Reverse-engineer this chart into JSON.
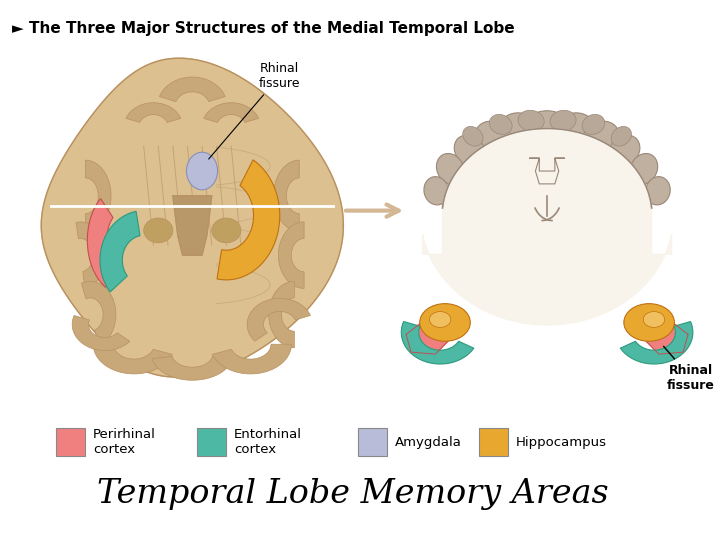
{
  "background_color": "#ffffff",
  "title": "Temporal Lobe Memory Areas",
  "title_fontsize": 24,
  "title_family": "serif",
  "header_text": "► The Three Major Structures of the Medial Temporal Lobe",
  "header_fontsize": 11,
  "legend_items": [
    {
      "label": "Perirhinal\ncortex",
      "color": "#f08080"
    },
    {
      "label": "Entorhinal\ncortex",
      "color": "#4db8a4"
    },
    {
      "label": "Amygdala",
      "color": "#b8bcd8"
    },
    {
      "label": "Hippocampus",
      "color": "#e8a830"
    }
  ],
  "brain_tan": "#c8a878",
  "brain_light": "#dcc090",
  "brain_dark": "#b89060",
  "brain_shadow": "#a07840",
  "cs_outer": "#c0b0a0",
  "cs_inner": "#f0e8d8",
  "cs_white": "#f8f4ec",
  "perirhinal_color": "#f08080",
  "entorhinal_color": "#4db8a4",
  "amygdala_color": "#b8bcd8",
  "hippocampus_color": "#e8a830",
  "hippocampus_inner": "#f0c060",
  "arrow_color": "#d4b896"
}
